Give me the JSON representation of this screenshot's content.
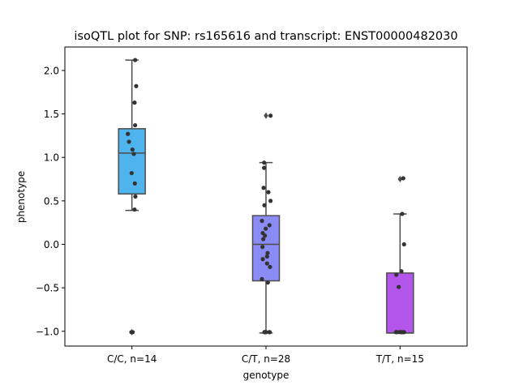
{
  "chart_data": {
    "type": "box",
    "title": "isoQTL plot for SNP: rs165616 and transcript: ENST00000482030",
    "xlabel": "genotype",
    "ylabel": "phenotype",
    "ylim": [
      -1.17,
      2.27
    ],
    "yticks": [
      -1.0,
      -0.5,
      0.0,
      0.5,
      1.0,
      1.5,
      2.0
    ],
    "ytick_labels": [
      "−1.0",
      "−0.5",
      "0.0",
      "0.5",
      "1.0",
      "1.5",
      "2.0"
    ],
    "categories": [
      "C/C, n=14",
      "C/T, n=28",
      "T/T, n=15"
    ],
    "colors": [
      "#4fb3ee",
      "#8b8bf5",
      "#b455ec"
    ],
    "boxes": [
      {
        "q1": 0.58,
        "median": 1.05,
        "q3": 1.33,
        "whisker_low": 0.39,
        "whisker_high": 2.12,
        "outliers": [
          -1.01
        ]
      },
      {
        "q1": -0.42,
        "median": 0.0,
        "q3": 0.33,
        "whisker_low": -1.02,
        "whisker_high": 0.94,
        "outliers": [
          1.48
        ]
      },
      {
        "q1": -1.02,
        "median": -1.02,
        "q3": -0.33,
        "whisker_low": -1.02,
        "whisker_high": 0.35,
        "outliers": [
          0.75
        ]
      }
    ],
    "points": [
      [
        [
          0.12,
          2.12
        ],
        [
          0.16,
          1.82
        ],
        [
          0.1,
          1.63
        ],
        [
          0.12,
          1.37
        ],
        [
          -0.15,
          1.27
        ],
        [
          -0.11,
          1.18
        ],
        [
          0.02,
          1.09
        ],
        [
          0.07,
          1.04
        ],
        [
          -0.01,
          0.82
        ],
        [
          0.11,
          0.7
        ],
        [
          0.13,
          0.55
        ],
        [
          0.1,
          0.4
        ],
        [
          -0.02,
          -1.01
        ],
        [
          0.03,
          -1.01
        ]
      ],
      [
        [
          0.17,
          1.48
        ],
        [
          -0.07,
          0.94
        ],
        [
          -0.07,
          0.88
        ],
        [
          -0.09,
          0.65
        ],
        [
          0.09,
          0.6
        ],
        [
          0.17,
          0.5
        ],
        [
          -0.06,
          0.45
        ],
        [
          -0.15,
          0.27
        ],
        [
          0.13,
          0.22
        ],
        [
          -0.01,
          0.18
        ],
        [
          -0.12,
          0.13
        ],
        [
          -0.1,
          0.06
        ],
        [
          -0.04,
          0.1
        ],
        [
          -0.13,
          -0.03
        ],
        [
          0.06,
          -0.1
        ],
        [
          0.04,
          -0.14
        ],
        [
          -0.12,
          -0.17
        ],
        [
          0.04,
          -0.22
        ],
        [
          0.15,
          -0.26
        ],
        [
          -0.15,
          -0.4
        ],
        [
          0.07,
          -0.44
        ],
        [
          -0.05,
          -1.01
        ],
        [
          -0.03,
          -1.01
        ],
        [
          0.0,
          -1.01
        ],
        [
          0.12,
          -1.01
        ],
        [
          0.14,
          -1.01
        ],
        [
          -0.06,
          -1.01
        ],
        [
          -0.02,
          -1.01
        ]
      ],
      [
        [
          0.12,
          0.76
        ],
        [
          0.08,
          0.35
        ],
        [
          0.15,
          0.0
        ],
        [
          0.05,
          -0.31
        ],
        [
          -0.14,
          -0.35
        ],
        [
          -0.05,
          -0.49
        ],
        [
          -0.15,
          -1.01
        ],
        [
          -0.12,
          -1.01
        ],
        [
          -0.02,
          -1.01
        ],
        [
          0.03,
          -1.01
        ],
        [
          0.08,
          -1.01
        ],
        [
          0.13,
          -1.01
        ],
        [
          0.15,
          -1.01
        ],
        [
          -0.13,
          -1.01
        ],
        [
          0.06,
          -1.01
        ]
      ]
    ]
  }
}
